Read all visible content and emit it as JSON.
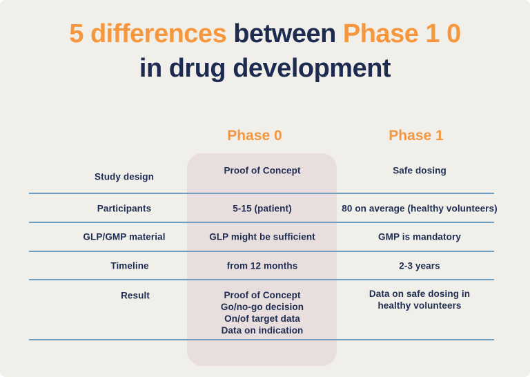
{
  "theme": {
    "background": "#f0efea",
    "orange": "#f6973e",
    "navy": "#1d2b50",
    "divider_blue": "#6f9ec1",
    "highlight_pink": "#e7dedd"
  },
  "title": {
    "segment_orange_1": "5 differences ",
    "segment_navy": "between ",
    "segment_orange_2": "Phase 1 0",
    "line2": "in drug development"
  },
  "chart_data": {
    "type": "table",
    "title": "5 differences between Phase 1 0 in drug development",
    "column_headers": {
      "phase0": "Phase 0",
      "phase1": "Phase 1"
    },
    "highlighted_column": "Phase 0",
    "row_labels": [
      "Study design",
      "Participants",
      "GLP/GMP material",
      "Timeline",
      "Result"
    ],
    "rows": [
      {
        "label": "Study design",
        "phase0": "Proof of Concept",
        "phase1": "Safe dosing"
      },
      {
        "label": "Participants",
        "phase0": "5-15 (patient)",
        "phase1": "80 on average (healthy volunteers)"
      },
      {
        "label": "GLP/GMP material",
        "phase0": "GLP might be sufficient",
        "phase1": "GMP is mandatory"
      },
      {
        "label": "Timeline",
        "phase0": "from 12 months",
        "phase1": "2-3 years"
      },
      {
        "label": "Result",
        "phase0": "Proof of Concept\nGo/no-go decision\nOn/of target data\nData on indication",
        "phase1": "Data on safe dosing in\nhealthy volunteers"
      }
    ]
  }
}
